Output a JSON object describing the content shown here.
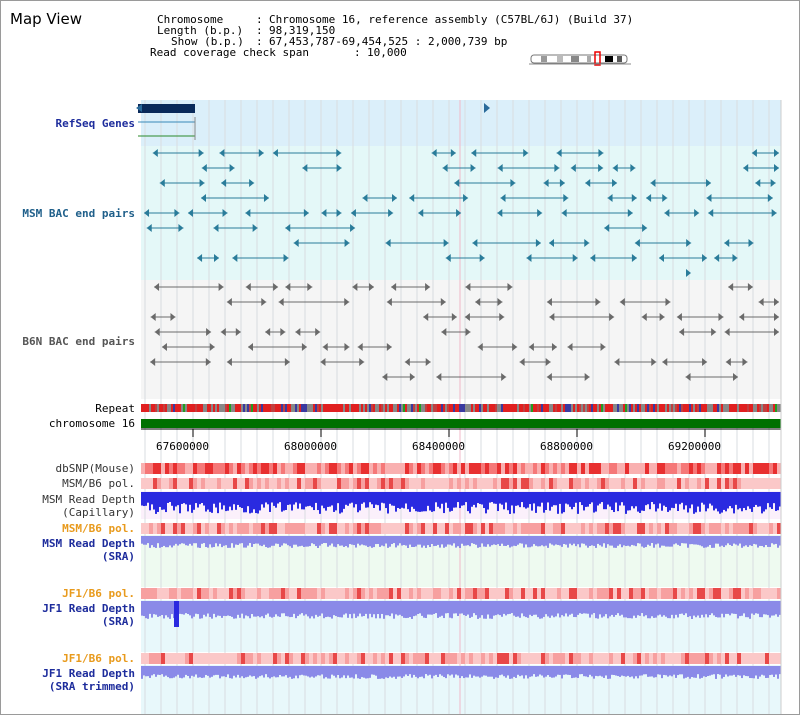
{
  "header": {
    "title": "Map View",
    "chromosome_label": "Chromosome",
    "chromosome_value": "Chromosome 16, reference assembly (C57BL/6J) (Build 37)",
    "length_label": "Length (b.p.)",
    "length_value": "98,319,150",
    "show_label": "Show (b.p.)",
    "show_value": "67,453,787-69,454,525 : 2,000,739 bp",
    "coverage_label": "Read coverage check span",
    "coverage_value": "10,000"
  },
  "tracks": {
    "refseq": "RefSeq Genes",
    "msm_bac": "MSM BAC end pairs",
    "b6n_bac": "B6N BAC end pairs",
    "repeat": "Repeat",
    "chromosome": "chromosome 16",
    "dbsnp": "dbSNP(Mouse)",
    "msm_b6_pol_1": "MSM/B6 pol.",
    "msm_read_depth_cap_1": "MSM Read Depth",
    "msm_read_depth_cap_2": "(Capillary)",
    "msm_b6_pol_2": "MSM/B6 pol.",
    "msm_read_depth_sra_1": "MSM Read Depth",
    "msm_read_depth_sra_2": "(SRA)",
    "jf1_b6_pol_1": "JF1/B6 pol.",
    "jf1_read_depth_1": "JF1 Read Depth",
    "jf1_read_depth_2": "(SRA)",
    "jf1_b6_pol_2": "JF1/B6 pol.",
    "jf1_trim_1": "JF1 Read Depth",
    "jf1_trim_2": "(SRA trimmed)"
  },
  "axis": {
    "ticks": [
      "67600000",
      "68000000",
      "68400000",
      "68800000",
      "69200000"
    ]
  },
  "colors": {
    "refseq_bg": "#dbeffa",
    "msm_bg": "#e4f8f8",
    "b6n_bg": "#f5f5f5",
    "chromosome_bar": "#007000",
    "read_depth_blue": "#2a2ae0",
    "read_depth_light": "#8a8ae8"
  }
}
